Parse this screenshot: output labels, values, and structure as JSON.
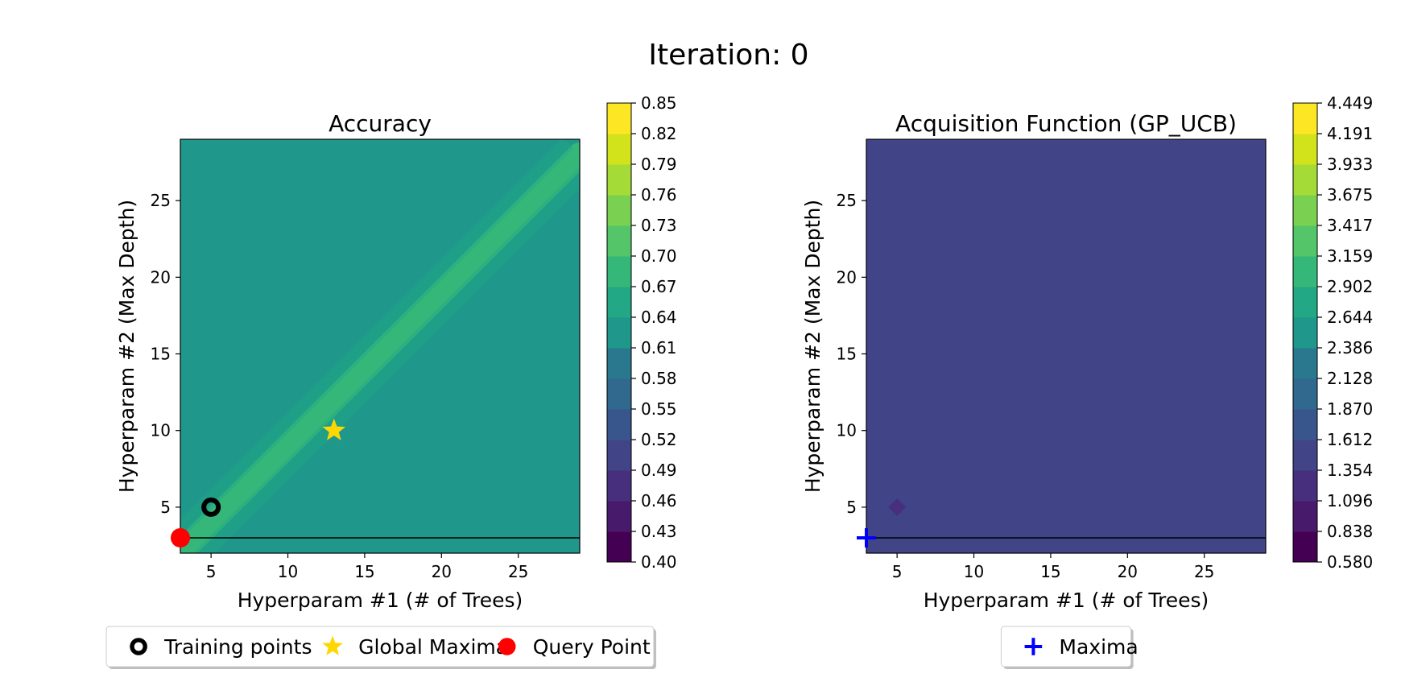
{
  "suptitle": "Iteration: 0",
  "chart_data": [
    {
      "type": "heatmap",
      "title": "Accuracy",
      "xlabel": "Hyperparam #1 (# of Trees)",
      "ylabel": "Hyperparam #2 (Max Depth)",
      "xlim": [
        3,
        29
      ],
      "ylim": [
        2,
        29
      ],
      "xticks": [
        5,
        10,
        15,
        20,
        25
      ],
      "yticks": [
        5,
        10,
        15,
        20,
        25
      ],
      "colorbar": {
        "ticks": [
          "0.40",
          "0.43",
          "0.46",
          "0.49",
          "0.52",
          "0.55",
          "0.58",
          "0.61",
          "0.64",
          "0.67",
          "0.70",
          "0.73",
          "0.76",
          "0.79",
          "0.82",
          "0.85"
        ]
      },
      "background_level": "0.61",
      "diagonal_band": {
        "from": [
          3,
          2
        ],
        "to": [
          29,
          28
        ],
        "level": "0.67"
      },
      "horizontal_line_y": 3,
      "markers": [
        {
          "label": "Training points",
          "x": 5,
          "y": 5,
          "symbol": "ring",
          "color": "#000000"
        },
        {
          "label": "Global Maxima",
          "x": 13,
          "y": 10,
          "symbol": "star",
          "color": "#ffd700"
        },
        {
          "label": "Query Point",
          "x": 3,
          "y": 3,
          "symbol": "circle",
          "color": "#ff0000"
        }
      ],
      "legend": [
        "Training points",
        "Global Maxima",
        "Query Point"
      ],
      "legend_position": "bottom"
    },
    {
      "type": "heatmap",
      "title": "Acquisition Function (GP_UCB)",
      "xlabel": "Hyperparam #1 (# of Trees)",
      "ylabel": "Hyperparam #2 (Max Depth)",
      "xlim": [
        3,
        29
      ],
      "ylim": [
        2,
        29
      ],
      "xticks": [
        5,
        10,
        15,
        20,
        25
      ],
      "yticks": [
        5,
        10,
        15,
        20,
        25
      ],
      "colorbar": {
        "ticks": [
          "0.580",
          "0.838",
          "1.096",
          "1.354",
          "1.612",
          "1.870",
          "2.128",
          "2.386",
          "2.644",
          "2.902",
          "3.159",
          "3.417",
          "3.675",
          "3.933",
          "4.191",
          "4.449"
        ]
      },
      "background_level": "1.354",
      "low_spot": {
        "x": 5,
        "y": 5,
        "level": "1.096"
      },
      "horizontal_line_y": 3,
      "markers": [
        {
          "label": "Maxima",
          "x": 3,
          "y": 3,
          "symbol": "plus",
          "color": "#0000ff"
        }
      ],
      "legend": [
        "Maxima"
      ],
      "legend_position": "bottom"
    }
  ],
  "colors": {
    "viridis_15": [
      "#440154",
      "#481a6c",
      "#472f7d",
      "#414487",
      "#39568c",
      "#31688e",
      "#2a788e",
      "#23888e",
      "#1f988b",
      "#22a884",
      "#35b779",
      "#54c568",
      "#7ad151",
      "#a5db36",
      "#d2e21b",
      "#fde725"
    ]
  }
}
